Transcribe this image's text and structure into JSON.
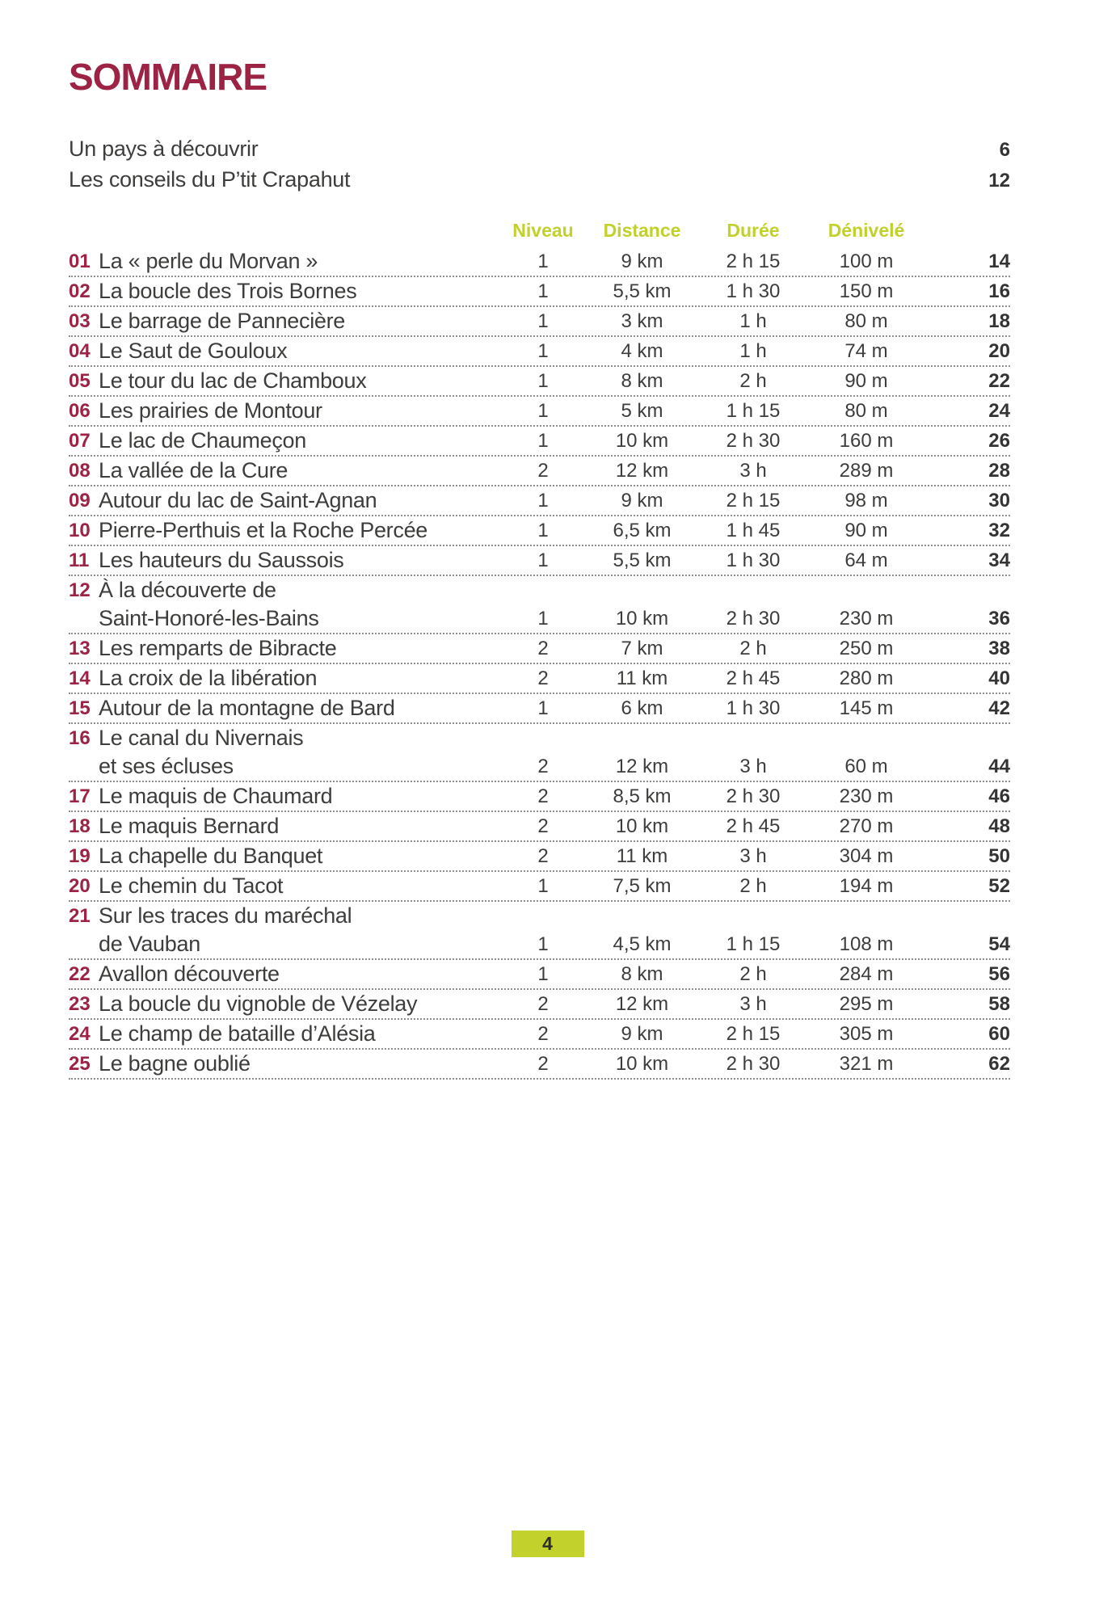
{
  "page": {
    "title": "SOMMAIRE",
    "footer_page_number": "4"
  },
  "colors": {
    "accent_burgundy": "#9c2344",
    "accent_green": "#c2d02a",
    "body_text": "#3d3d3b"
  },
  "intro_items": [
    {
      "title": "Un pays à découvrir",
      "page": "6"
    },
    {
      "title": "Les conseils du P’tit Crapahut",
      "page": "12"
    }
  ],
  "table": {
    "headers": {
      "niveau": "Niveau",
      "distance": "Distance",
      "duree": "Durée",
      "denivele": "Dénivelé"
    },
    "rows": [
      {
        "num": "01",
        "title": "La « perle du Morvan »",
        "title2": "",
        "niveau": "1",
        "distance": "9 km",
        "duree": "2 h 15",
        "denivele": "100 m",
        "page": "14"
      },
      {
        "num": "02",
        "title": "La boucle des Trois Bornes",
        "title2": "",
        "niveau": "1",
        "distance": "5,5 km",
        "duree": "1 h 30",
        "denivele": "150 m",
        "page": "16"
      },
      {
        "num": "03",
        "title": "Le barrage de Pannecière",
        "title2": "",
        "niveau": "1",
        "distance": "3 km",
        "duree": "1 h",
        "denivele": "80 m",
        "page": "18"
      },
      {
        "num": "04",
        "title": "Le Saut de Gouloux",
        "title2": "",
        "niveau": "1",
        "distance": "4 km",
        "duree": "1 h",
        "denivele": "74 m",
        "page": "20"
      },
      {
        "num": "05",
        "title": "Le tour du lac de Chamboux",
        "title2": "",
        "niveau": "1",
        "distance": "8 km",
        "duree": "2 h",
        "denivele": "90 m",
        "page": "22"
      },
      {
        "num": "06",
        "title": "Les prairies de Montour",
        "title2": "",
        "niveau": "1",
        "distance": "5 km",
        "duree": "1 h 15",
        "denivele": "80 m",
        "page": "24"
      },
      {
        "num": "07",
        "title": "Le lac de Chaumeçon",
        "title2": "",
        "niveau": "1",
        "distance": "10 km",
        "duree": "2 h 30",
        "denivele": "160 m",
        "page": "26"
      },
      {
        "num": "08",
        "title": "La vallée de la Cure",
        "title2": "",
        "niveau": "2",
        "distance": "12 km",
        "duree": "3 h",
        "denivele": "289 m",
        "page": "28"
      },
      {
        "num": "09",
        "title": "Autour du lac de Saint-Agnan",
        "title2": "",
        "niveau": "1",
        "distance": "9 km",
        "duree": "2 h 15",
        "denivele": "98 m",
        "page": "30"
      },
      {
        "num": "10",
        "title": "Pierre-Perthuis et la Roche Percée",
        "title2": "",
        "niveau": "1",
        "distance": "6,5 km",
        "duree": "1 h 45",
        "denivele": "90 m",
        "page": "32"
      },
      {
        "num": "11",
        "title": "Les hauteurs du Saussois",
        "title2": "",
        "niveau": "1",
        "distance": "5,5 km",
        "duree": "1 h 30",
        "denivele": "64 m",
        "page": "34"
      },
      {
        "num": "12",
        "title": "À la découverte de",
        "title2": "Saint-Honoré-les-Bains",
        "niveau": "1",
        "distance": "10 km",
        "duree": "2 h 30",
        "denivele": "230 m",
        "page": "36"
      },
      {
        "num": "13",
        "title": "Les remparts de Bibracte",
        "title2": "",
        "niveau": "2",
        "distance": "7 km",
        "duree": "2 h",
        "denivele": "250 m",
        "page": "38"
      },
      {
        "num": "14",
        "title": "La croix de la libération",
        "title2": "",
        "niveau": "2",
        "distance": "11 km",
        "duree": "2 h 45",
        "denivele": "280 m",
        "page": "40"
      },
      {
        "num": "15",
        "title": "Autour de la montagne de Bard",
        "title2": "",
        "niveau": "1",
        "distance": "6 km",
        "duree": "1 h 30",
        "denivele": "145 m",
        "page": "42"
      },
      {
        "num": "16",
        "title": "Le canal du Nivernais",
        "title2": "et ses écluses",
        "niveau": "2",
        "distance": "12 km",
        "duree": "3 h",
        "denivele": "60 m",
        "page": "44"
      },
      {
        "num": "17",
        "title": "Le maquis de Chaumard",
        "title2": "",
        "niveau": "2",
        "distance": "8,5 km",
        "duree": "2 h 30",
        "denivele": "230 m",
        "page": "46"
      },
      {
        "num": "18",
        "title": "Le maquis Bernard",
        "title2": "",
        "niveau": "2",
        "distance": "10 km",
        "duree": "2 h 45",
        "denivele": "270 m",
        "page": "48"
      },
      {
        "num": "19",
        "title": "La chapelle du Banquet",
        "title2": "",
        "niveau": "2",
        "distance": "11 km",
        "duree": "3 h",
        "denivele": "304 m",
        "page": "50"
      },
      {
        "num": "20",
        "title": "Le chemin du Tacot",
        "title2": "",
        "niveau": "1",
        "distance": "7,5 km",
        "duree": "2 h",
        "denivele": "194 m",
        "page": "52"
      },
      {
        "num": "21",
        "title": "Sur les traces du maréchal",
        "title2": "de Vauban",
        "niveau": "1",
        "distance": "4,5 km",
        "duree": "1 h 15",
        "denivele": "108 m",
        "page": "54"
      },
      {
        "num": "22",
        "title": "Avallon découverte",
        "title2": "",
        "niveau": "1",
        "distance": "8 km",
        "duree": "2 h",
        "denivele": "284 m",
        "page": "56"
      },
      {
        "num": "23",
        "title": "La boucle du vignoble de Vézelay",
        "title2": "",
        "niveau": "2",
        "distance": "12 km",
        "duree": "3 h",
        "denivele": "295 m",
        "page": "58"
      },
      {
        "num": "24",
        "title": "Le champ de bataille d’Alésia",
        "title2": "",
        "niveau": "2",
        "distance": "9 km",
        "duree": "2 h 15",
        "denivele": "305 m",
        "page": "60"
      },
      {
        "num": "25",
        "title": "Le bagne oublié",
        "title2": "",
        "niveau": "2",
        "distance": "10 km",
        "duree": "2 h 30",
        "denivele": "321 m",
        "page": "62"
      }
    ]
  }
}
